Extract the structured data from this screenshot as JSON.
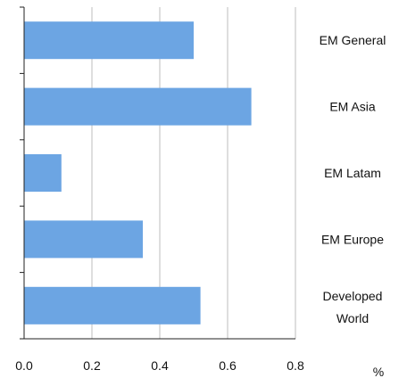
{
  "chart_data": {
    "type": "bar",
    "orientation": "horizontal",
    "categories": [
      "EM General",
      "EM Asia",
      "EM Latam",
      "EM Europe",
      "Developed World"
    ],
    "values": [
      0.5,
      0.67,
      0.11,
      0.35,
      0.52
    ],
    "xlim": [
      0,
      0.8
    ],
    "xticks": [
      0,
      0.2,
      0.4,
      0.6,
      0.8
    ],
    "xtick_labels": [
      "0.0",
      "0.2",
      "0.4",
      "0.6",
      "0.8"
    ],
    "unit": "%",
    "grid": "vertical",
    "bar_color": "#6ca5e3",
    "grid_color": "#d4d4d4",
    "title": "",
    "xlabel": "",
    "ylabel": ""
  }
}
